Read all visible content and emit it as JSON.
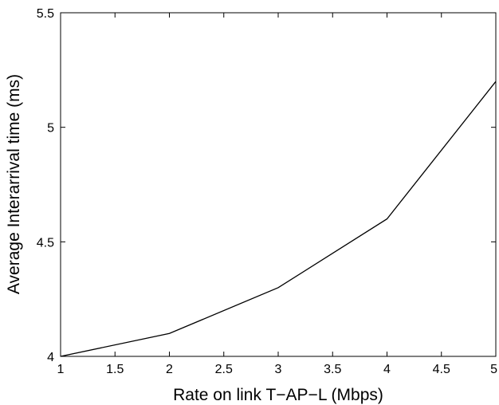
{
  "chart_data": {
    "type": "line",
    "title": "",
    "xlabel": "Rate on link T−AP−L (Mbps)",
    "ylabel": "Average Interarrival time (ms)",
    "xlim": [
      1,
      5
    ],
    "ylim": [
      4,
      5.5
    ],
    "xticks": [
      1,
      1.5,
      2,
      2.5,
      3,
      3.5,
      4,
      4.5,
      5
    ],
    "xtick_labels": [
      "1",
      "1.5",
      "2",
      "2.5",
      "3",
      "3.5",
      "4",
      "4.5",
      "5"
    ],
    "yticks": [
      4,
      4.5,
      5,
      5.5
    ],
    "ytick_labels": [
      "4",
      "4.5",
      "5",
      "5.5"
    ],
    "grid": false,
    "legend": "none",
    "series": [
      {
        "x": [
          1,
          2,
          3,
          4,
          5
        ],
        "values": [
          4.0,
          4.1,
          4.3,
          4.6,
          5.2
        ],
        "color": "#000000"
      }
    ]
  }
}
